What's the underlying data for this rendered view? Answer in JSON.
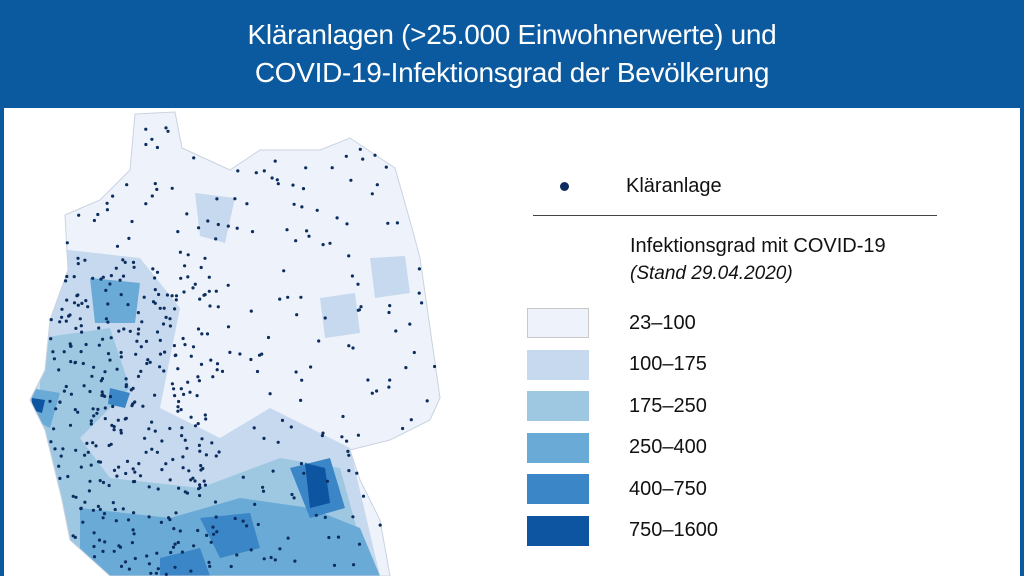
{
  "title": {
    "line1": "Kläranlagen (>25.000 Einwohnerwerte) und",
    "line2": "COVID-19-Infektionsgrad der Bevölkerung"
  },
  "legend": {
    "point_label": "Kläranlage",
    "point_color": "#0c2d5e",
    "title": "Infektionsgrad mit COVID-19",
    "subtitle": "(Stand 29.04.2020)",
    "classes": [
      {
        "label": " 23–100",
        "color": "#eef3fb"
      },
      {
        "label": "100–175",
        "color": "#c6d9ee"
      },
      {
        "label": "175–250",
        "color": "#9ec8e2"
      },
      {
        "label": "250–400",
        "color": "#6aaad6"
      },
      {
        "label": "400–750",
        "color": "#3a86c6"
      },
      {
        "label": "750–1600",
        "color": "#0d55a0"
      }
    ]
  }
}
